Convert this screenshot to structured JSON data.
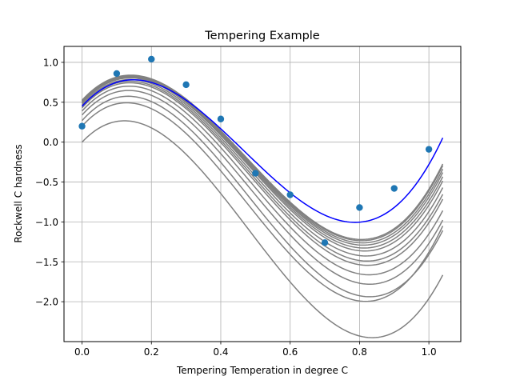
{
  "chart_data": {
    "type": "line",
    "title": "Tempering Example",
    "xlabel": "Tempering Temperation in degree C",
    "ylabel": "Rockwell C hardness",
    "xlim": [
      -0.052,
      1.092
    ],
    "ylim": [
      -2.5,
      1.2
    ],
    "xticks": [
      0.0,
      0.2,
      0.4,
      0.6,
      0.8,
      1.0
    ],
    "xtick_labels": [
      "0.0",
      "0.2",
      "0.4",
      "0.6",
      "0.8",
      "1.0"
    ],
    "yticks": [
      1.0,
      0.5,
      0.0,
      -0.5,
      -1.0,
      -1.5,
      -2.0
    ],
    "ytick_labels": [
      "1.0",
      "0.5",
      "0.0",
      "−0.5",
      "−1.0",
      "−1.5",
      "−2.0"
    ],
    "grid": true,
    "colors": {
      "data": "#1f77b4",
      "iterations": "#808080",
      "fit": "#0000ff"
    },
    "scatter": {
      "x": [
        0.0,
        0.1,
        0.2,
        0.3,
        0.4,
        0.5,
        0.6,
        0.7,
        0.8,
        0.9,
        1.0
      ],
      "y": [
        0.2,
        0.86,
        1.04,
        0.72,
        0.29,
        -0.39,
        -0.66,
        -1.26,
        -0.82,
        -0.58,
        -0.09
      ]
    },
    "curve_x_range": [
      0.0,
      1.04
    ],
    "iteration_curves": [
      {
        "c": [
          0.0,
          4.59,
          -21.47,
          14.92
        ]
      },
      {
        "c": [
          0.2,
          4.81,
          -21.62,
          15.23
        ]
      },
      {
        "c": [
          0.27,
          4.88,
          -21.41,
          14.85
        ]
      },
      {
        "c": [
          0.34,
          4.84,
          -20.92,
          14.47
        ]
      },
      {
        "c": [
          0.39,
          4.84,
          -20.68,
          14.3
        ]
      },
      {
        "c": [
          0.43,
          4.83,
          -20.47,
          14.2
        ]
      },
      {
        "c": [
          0.45,
          4.81,
          -20.33,
          14.12
        ]
      },
      {
        "c": [
          0.47,
          4.8,
          -20.22,
          14.08
        ]
      },
      {
        "c": [
          0.49,
          4.79,
          -20.12,
          14.05
        ]
      },
      {
        "c": [
          0.5,
          4.78,
          -20.05,
          14.03
        ]
      },
      {
        "c": [
          0.51,
          4.77,
          -19.99,
          14.02
        ]
      },
      {
        "c": [
          0.515,
          4.765,
          -19.94,
          14.01
        ]
      },
      {
        "c": [
          0.52,
          4.76,
          -19.9,
          14.01
        ]
      },
      {
        "c": [
          0.525,
          4.755,
          -19.87,
          14.0
        ]
      }
    ],
    "fit_curve": {
      "c": [
        0.45,
        4.78,
        -19.19,
        13.68
      ]
    }
  }
}
